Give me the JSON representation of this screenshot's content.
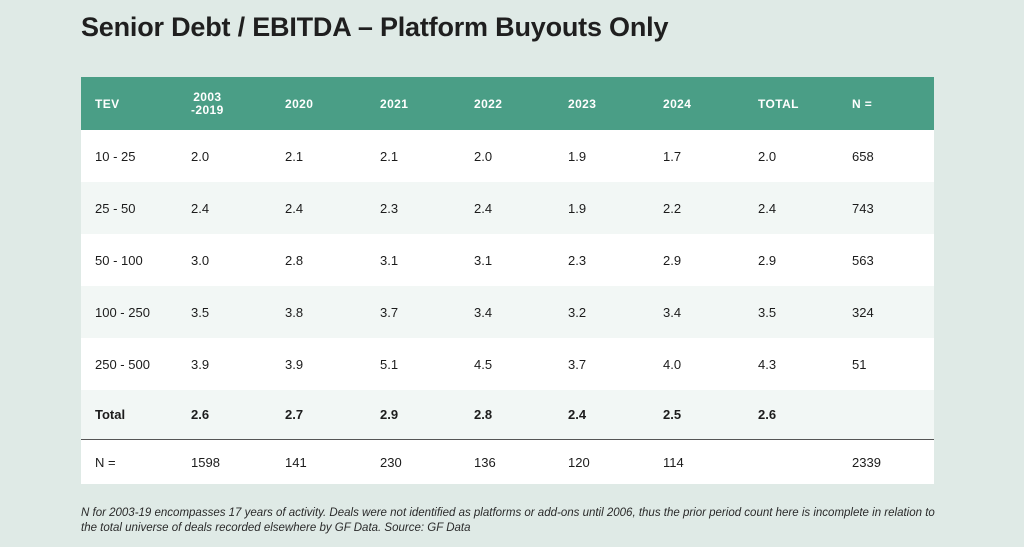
{
  "title": "Senior Debt / EBITDA – Platform Buyouts Only",
  "table": {
    "headers": [
      "TEV",
      "2003",
      "-2019",
      "2020",
      "2021",
      "2022",
      "2023",
      "2024",
      "TOTAL",
      "N ="
    ],
    "rows": [
      [
        "10 - 25",
        "2.0",
        "2.1",
        "2.1",
        "2.0",
        "1.9",
        "1.7",
        "2.0",
        "658"
      ],
      [
        "25 - 50",
        "2.4",
        "2.4",
        "2.3",
        "2.4",
        "1.9",
        "2.2",
        "2.4",
        "743"
      ],
      [
        "50 - 100",
        "3.0",
        "2.8",
        "3.1",
        "3.1",
        "2.3",
        "2.9",
        "2.9",
        "563"
      ],
      [
        "100 - 250",
        "3.5",
        "3.8",
        "3.7",
        "3.4",
        "3.2",
        "3.4",
        "3.5",
        "324"
      ],
      [
        "250 - 500",
        "3.9",
        "3.9",
        "5.1",
        "4.5",
        "3.7",
        "4.0",
        "4.3",
        "51"
      ]
    ],
    "total": [
      "Total",
      "2.6",
      "2.7",
      "2.9",
      "2.8",
      "2.4",
      "2.5",
      "2.6",
      ""
    ],
    "n_row": [
      "N =",
      "1598",
      "141",
      "230",
      "136",
      "120",
      "114",
      "",
      "2339"
    ]
  },
  "footnote": "N for 2003-19 encompasses 17 years of activity. Deals were not identified as platforms or add-ons until 2006, thus the prior period count here is incomplete in relation to the total universe of deals recorded elsewhere by GF Data. Source: GF Data"
}
